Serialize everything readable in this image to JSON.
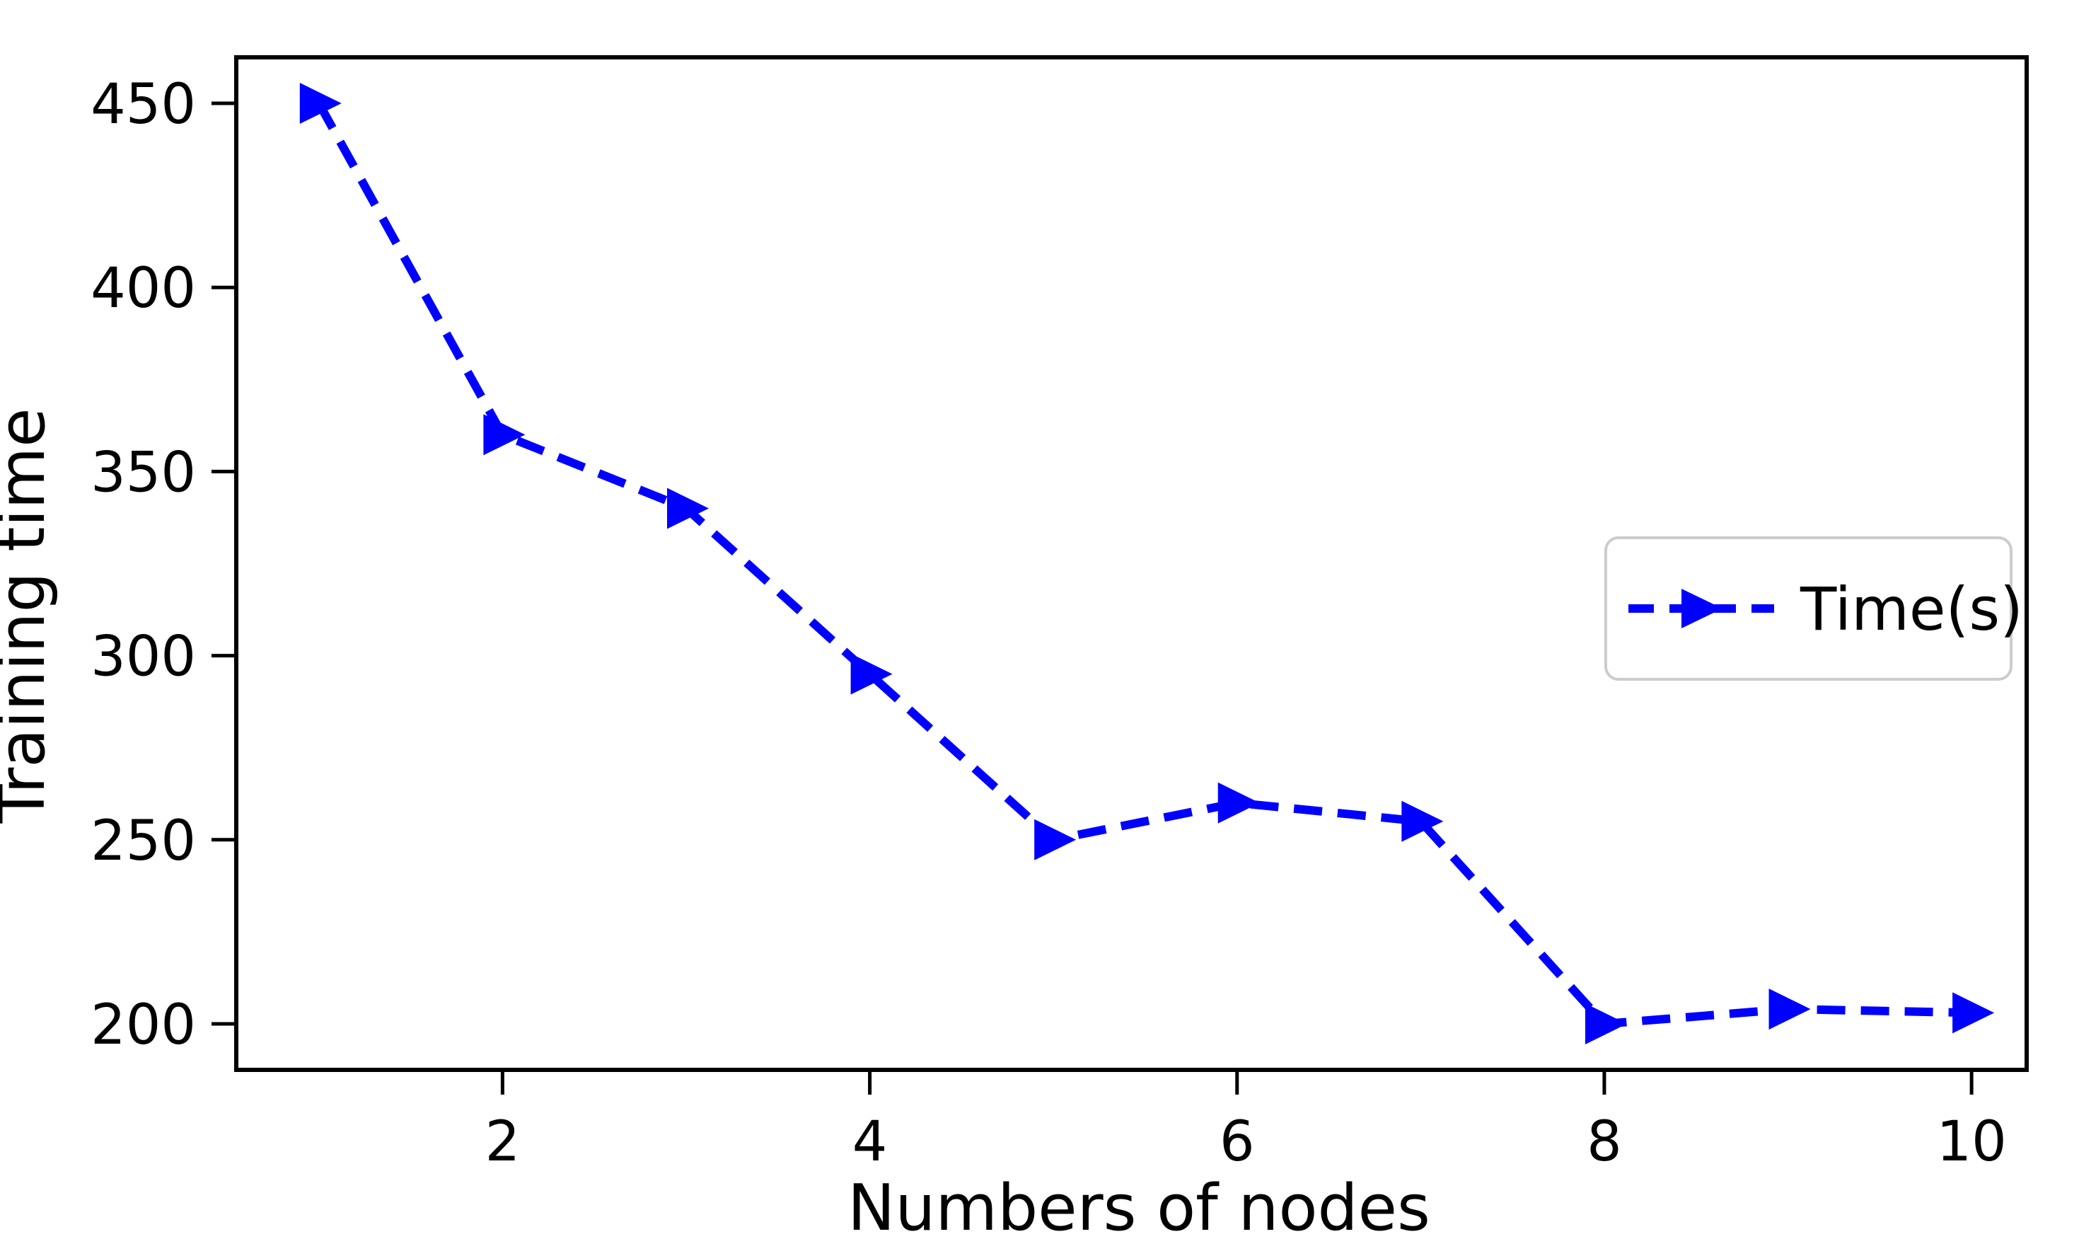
{
  "figure": {
    "background_color": "#ffffff",
    "axis_color": "#000000",
    "text_color": "#000000",
    "legend_border_color": "#cccccc"
  },
  "chart_data": {
    "type": "line",
    "title": "",
    "xlabel": "Numbers of nodes",
    "ylabel": "Training time",
    "x": [
      1,
      2,
      3,
      4,
      5,
      6,
      7,
      8,
      9,
      10
    ],
    "series": [
      {
        "name": "Time(s)",
        "values": [
          450,
          360,
          340,
          295,
          250,
          260,
          255,
          200,
          204,
          203
        ],
        "color": "#0000ff",
        "line_style": "dashed",
        "marker": "triangle-right"
      }
    ],
    "xticks": [
      2,
      4,
      6,
      8,
      10
    ],
    "yticks": [
      200,
      250,
      300,
      350,
      400,
      450
    ],
    "xlim": [
      0.55,
      10.3
    ],
    "ylim": [
      187.5,
      462.5
    ],
    "grid": false,
    "legend": {
      "label": "Time(s)",
      "position": "center-right"
    }
  }
}
